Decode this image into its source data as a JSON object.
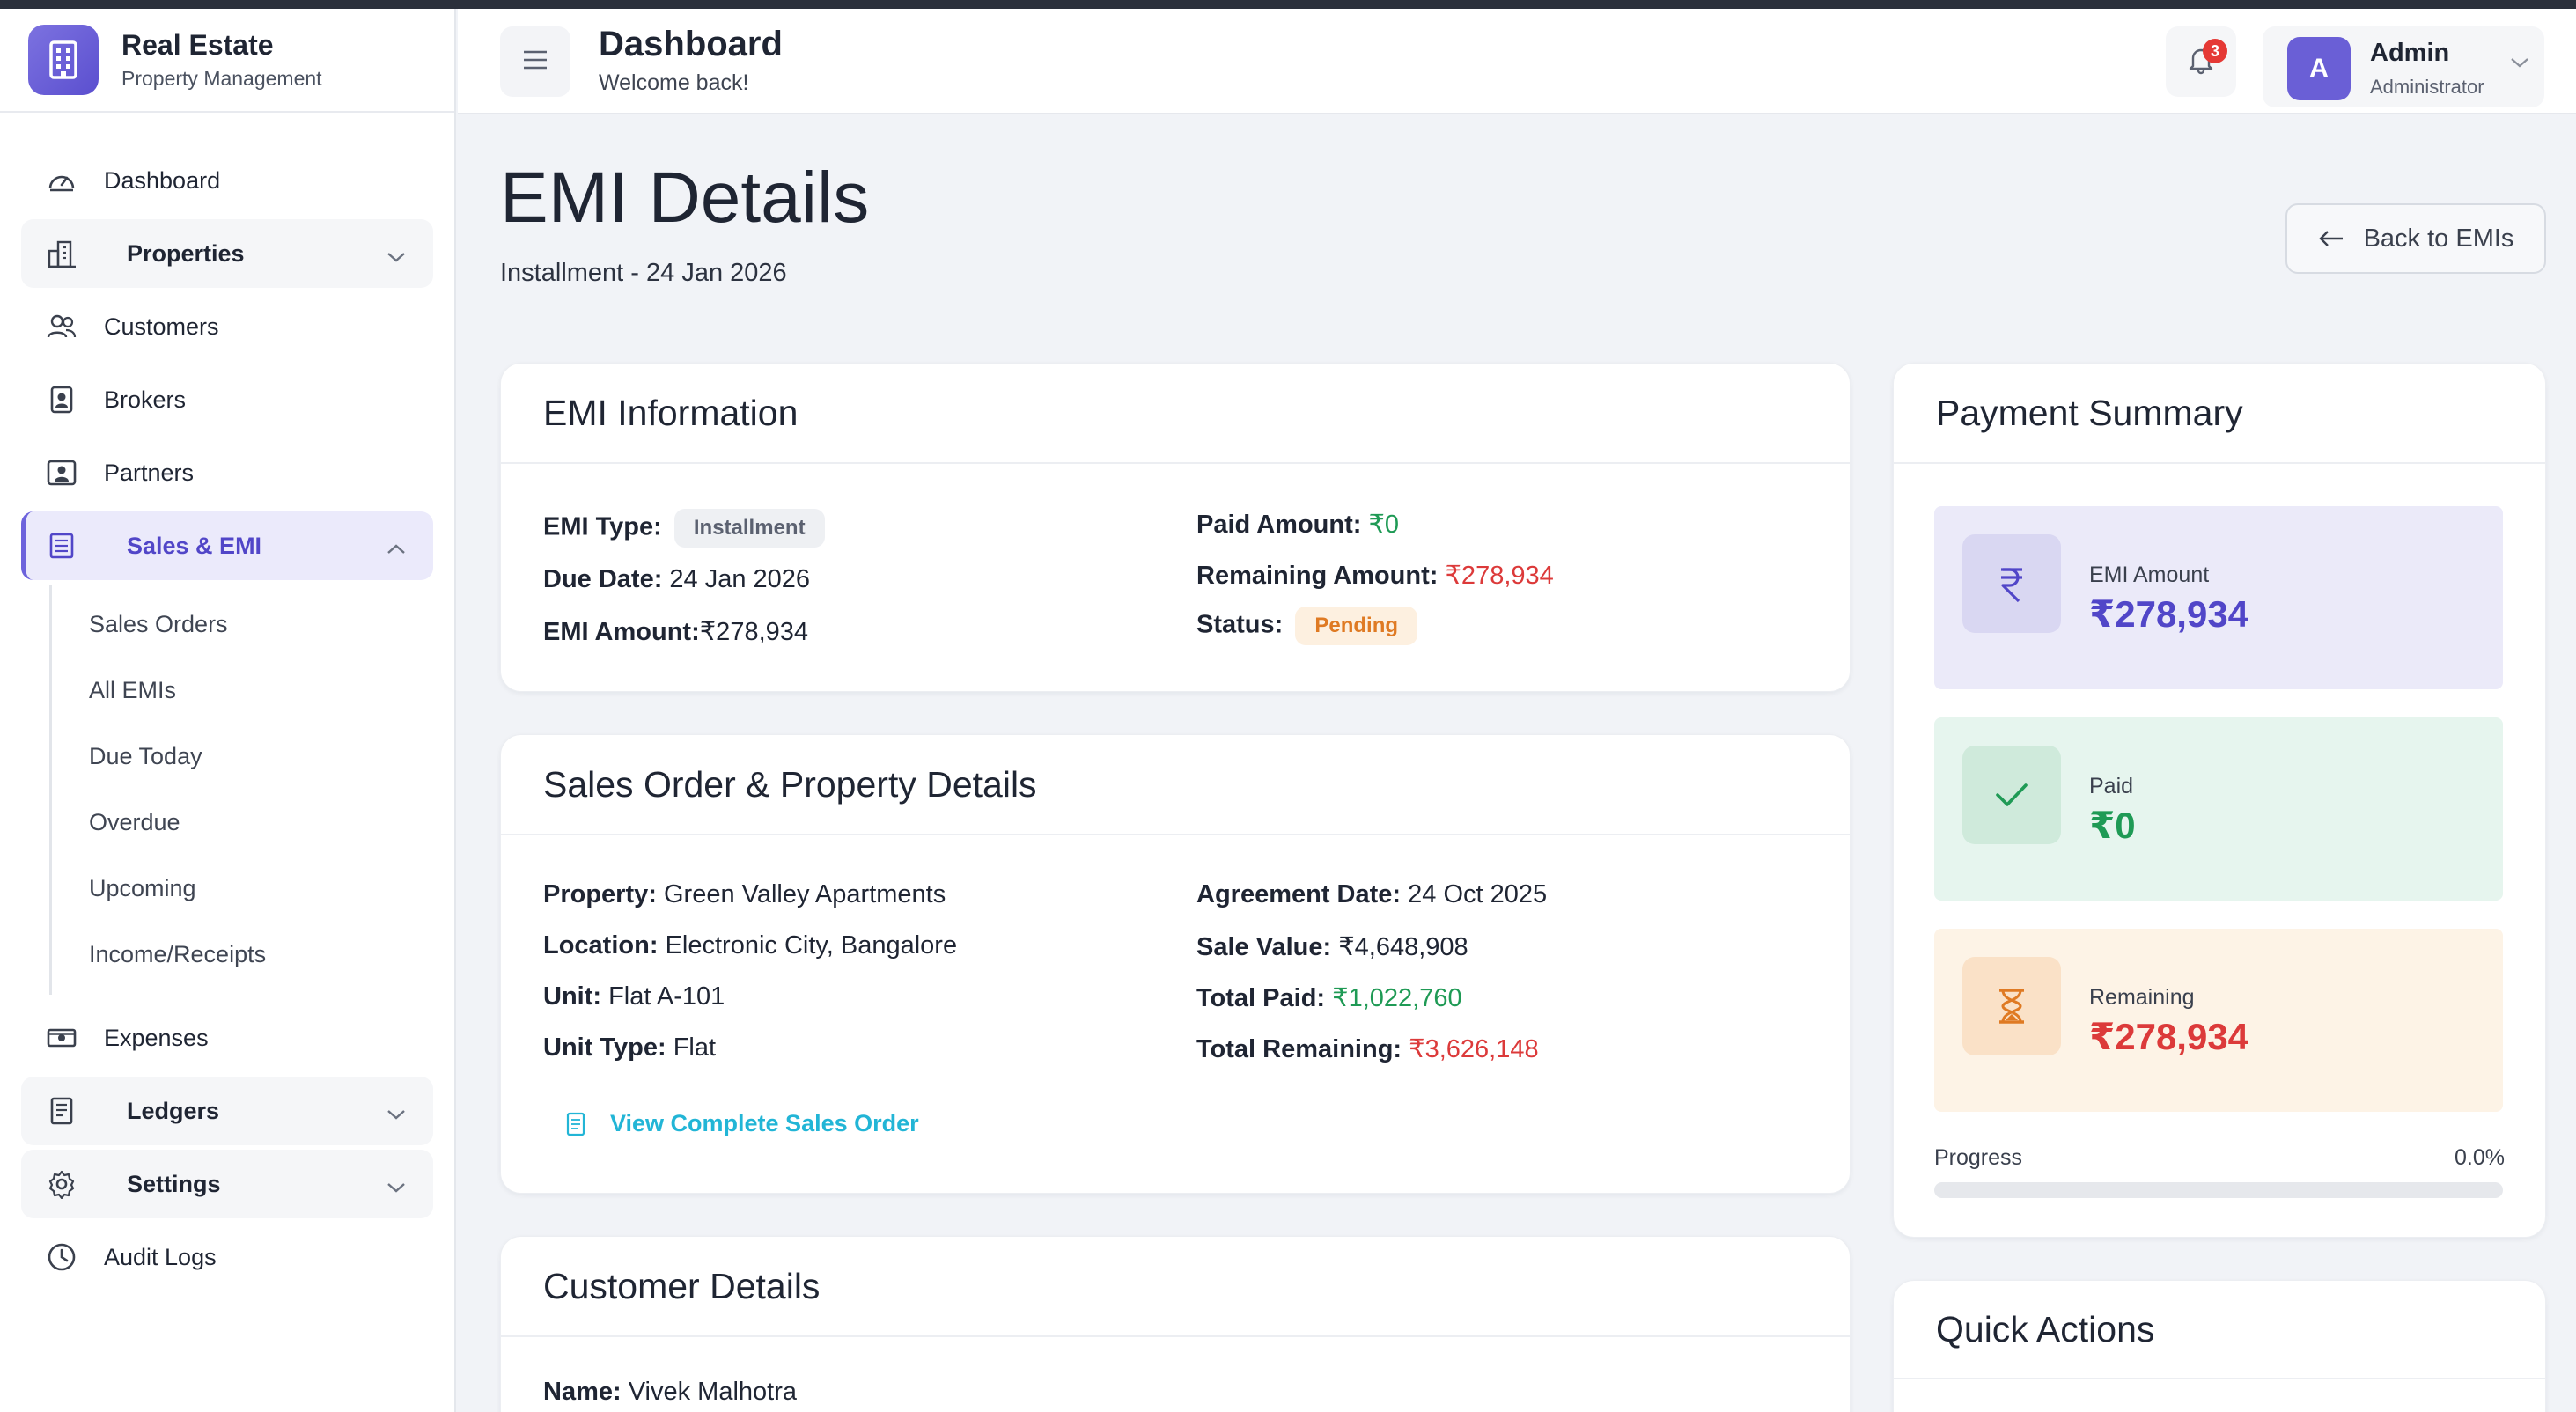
{
  "brand": {
    "title": "Real Estate",
    "subtitle": "Property Management"
  },
  "sidebar": {
    "items": [
      {
        "label": "Dashboard"
      },
      {
        "label": "Properties"
      },
      {
        "label": "Customers"
      },
      {
        "label": "Brokers"
      },
      {
        "label": "Partners"
      },
      {
        "label": "Sales & EMI"
      },
      {
        "label": "Expenses"
      },
      {
        "label": "Ledgers"
      },
      {
        "label": "Settings"
      },
      {
        "label": "Audit Logs"
      }
    ],
    "sales_sub": [
      {
        "label": "Sales Orders"
      },
      {
        "label": "All EMIs"
      },
      {
        "label": "Due Today"
      },
      {
        "label": "Overdue"
      },
      {
        "label": "Upcoming"
      },
      {
        "label": "Income/Receipts"
      }
    ]
  },
  "header": {
    "title": "Dashboard",
    "subtitle": "Welcome back!",
    "notification_count": "3",
    "user": {
      "initial": "A",
      "name": "Admin",
      "role": "Administrator"
    }
  },
  "page": {
    "title": "EMI Details",
    "subtitle": "Installment - 24 Jan 2026",
    "back_label": "Back to EMIs"
  },
  "emi_info": {
    "title": "EMI Information",
    "emi_type_label": "EMI Type:",
    "emi_type": "Installment",
    "due_date_label": "Due Date:",
    "due_date": "24 Jan 2026",
    "emi_amount_label": "EMI Amount:",
    "emi_amount": "₹278,934",
    "paid_label": "Paid Amount:",
    "paid": "₹0",
    "remaining_label": "Remaining Amount:",
    "remaining": "₹278,934",
    "status_label": "Status:",
    "status": "Pending"
  },
  "sales_order": {
    "title": "Sales Order & Property Details",
    "property_label": "Property:",
    "property": "Green Valley Apartments",
    "location_label": "Location:",
    "location": "Electronic City, Bangalore",
    "unit_label": "Unit:",
    "unit": "Flat A-101",
    "unit_type_label": "Unit Type:",
    "unit_type": "Flat",
    "agreement_label": "Agreement Date:",
    "agreement": "24 Oct 2025",
    "sale_value_label": "Sale Value:",
    "sale_value": "₹4,648,908",
    "total_paid_label": "Total Paid:",
    "total_paid": "₹1,022,760",
    "total_remaining_label": "Total Remaining:",
    "total_remaining": "₹3,626,148",
    "link_label": "View Complete Sales Order"
  },
  "customer": {
    "title": "Customer Details",
    "name_label": "Name:",
    "name": "Vivek Malhotra"
  },
  "summary": {
    "title": "Payment Summary",
    "emi_label": "EMI Amount",
    "emi_value": "₹278,934",
    "paid_label": "Paid",
    "paid_value": "₹0",
    "remaining_label": "Remaining",
    "remaining_value": "₹278,934",
    "progress_label": "Progress",
    "progress_text": "0.0%",
    "progress_fraction": 0.0
  },
  "quick_actions": {
    "title": "Quick Actions"
  },
  "colors": {
    "accent": "#6d63dc",
    "paid_green": "#1f9a55",
    "remaining_red": "#dc3a3a",
    "pending_orange": "#df7a23",
    "link_cyan": "#22b5d6"
  },
  "icons": {
    "brand": "building-icon",
    "dashboard": "gauge-icon",
    "properties": "city-icon",
    "customers": "users-icon",
    "brokers": "id-badge-icon",
    "partners": "person-card-icon",
    "sales": "receipt-icon",
    "expenses": "cash-icon",
    "ledgers": "ledger-icon",
    "settings": "gear-icon",
    "audit": "clock-icon"
  }
}
